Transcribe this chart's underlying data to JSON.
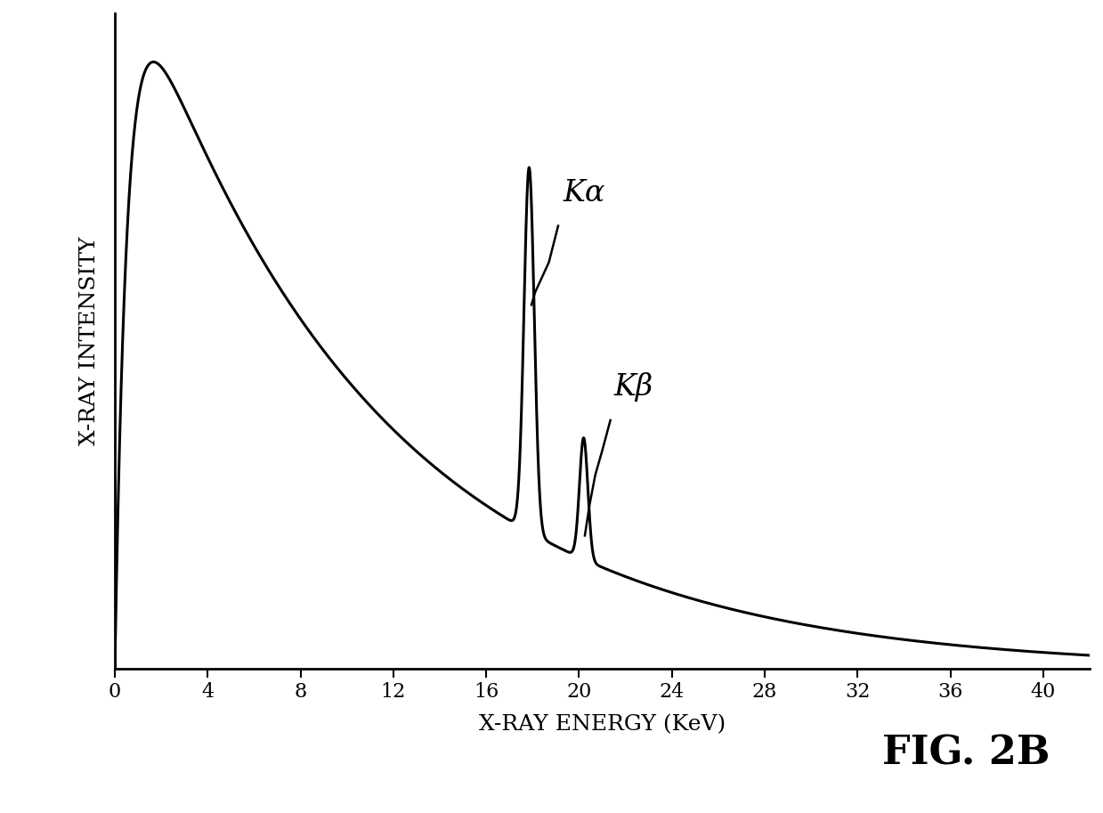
{
  "xlabel": "X-RAY ENERGY (KeV)",
  "ylabel": "X-RAY INTENSITY",
  "fig_label": "FIG. 2B",
  "xlim": [
    0,
    42
  ],
  "ylim": [
    0,
    1.08
  ],
  "xticks": [
    0,
    4,
    8,
    12,
    16,
    20,
    24,
    28,
    32,
    36,
    40
  ],
  "background_color": "#ffffff",
  "line_color": "#000000",
  "ka_label": "Kα",
  "kb_label": "Kβ",
  "axis_label_fontsize": 18,
  "tick_fontsize": 16,
  "fig_label_fontsize": 32
}
